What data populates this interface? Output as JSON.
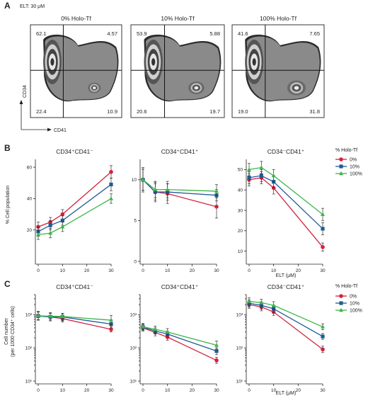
{
  "panels": {
    "A": {
      "letter": "A",
      "subtitle": "ELT: 30 μM",
      "y_marker": "CD34",
      "x_marker": "CD41",
      "plots": [
        {
          "title": "0% Holo-Tf",
          "q_ul": "62.1",
          "q_ur": "4.57",
          "q_ll": "22.4",
          "q_lr": "10.9"
        },
        {
          "title": "10% Holo-Tf",
          "q_ul": "53.9",
          "q_ur": "5.88",
          "q_ll": "20.6",
          "q_lr": "19.7"
        },
        {
          "title": "100% Holo-Tf",
          "q_ul": "41.6",
          "q_ur": "7.65",
          "q_ll": "19.0",
          "q_lr": "31.8"
        }
      ]
    },
    "B": {
      "letter": "B",
      "ylabel": "% Cell population",
      "xlabel": "ELT (μM)",
      "legend_title": "% Holo-Tf",
      "legend": [
        "0%",
        "10%",
        "100%"
      ]
    },
    "C": {
      "letter": "C",
      "ylabel_1": "Cell number",
      "ylabel_2": "(per 1000 CD34⁺ cells)",
      "xlabel": "ELT (μM)",
      "legend_title": "% Holo-Tf",
      "legend": [
        "0%",
        "10%",
        "100%"
      ]
    }
  },
  "colors": {
    "0%": "#d4213d",
    "10%": "#1f5b96",
    "100%": "#3db54a"
  },
  "chart_data": [
    {
      "type": "line",
      "title": "CD34⁺CD41⁻",
      "panel": "B",
      "yscale": "linear",
      "x": [
        0,
        5,
        10,
        30
      ],
      "xticks": [
        "0",
        "10",
        "20",
        "30"
      ],
      "xlim": [
        0,
        30
      ],
      "ylim": [
        0,
        65
      ],
      "yticks": [
        "20",
        "40",
        "60"
      ],
      "ytick_values": [
        20,
        40,
        60
      ],
      "series": [
        {
          "name": "0%",
          "values": [
            22,
            25,
            30,
            57
          ],
          "err": [
            3,
            3,
            3,
            4
          ]
        },
        {
          "name": "10%",
          "values": [
            19,
            23,
            26,
            49
          ],
          "err": [
            3,
            3,
            3,
            4
          ]
        },
        {
          "name": "100%",
          "values": [
            17,
            18,
            22,
            40
          ],
          "err": [
            3,
            3,
            3,
            3
          ]
        }
      ]
    },
    {
      "type": "line",
      "title": "CD34⁺CD41⁺",
      "panel": "B",
      "yscale": "linear",
      "x": [
        0,
        5,
        10,
        30
      ],
      "xticks": [
        "0",
        "10",
        "20",
        "30"
      ],
      "xlim": [
        0,
        30
      ],
      "ylim": [
        0,
        12.5
      ],
      "yticks": [
        "0",
        "5",
        "10"
      ],
      "ytick_values": [
        0,
        5,
        10
      ],
      "series": [
        {
          "name": "0%",
          "values": [
            10,
            8.5,
            8.3,
            6.7
          ],
          "err": [
            1.5,
            1.2,
            1.2,
            1.4
          ]
        },
        {
          "name": "10%",
          "values": [
            10,
            8.5,
            8.5,
            8.1
          ],
          "err": [
            1.3,
            1.0,
            1.0,
            0.7
          ]
        },
        {
          "name": "100%",
          "values": [
            10,
            8.8,
            8.8,
            8.6
          ],
          "err": [
            1.3,
            1.0,
            1.0,
            0.8
          ]
        }
      ]
    },
    {
      "type": "line",
      "title": "CD34⁻CD41⁺",
      "panel": "B",
      "yscale": "linear",
      "x": [
        0,
        5,
        10,
        30
      ],
      "xticks": [
        "0",
        "10",
        "20",
        "30"
      ],
      "xlim": [
        0,
        30
      ],
      "ylim": [
        5,
        55
      ],
      "yticks": [
        "10",
        "20",
        "30",
        "40",
        "50"
      ],
      "ytick_values": [
        10,
        20,
        30,
        40,
        50
      ],
      "series": [
        {
          "name": "0%",
          "values": [
            45,
            46,
            41,
            12
          ],
          "err": [
            3,
            3,
            3,
            2
          ]
        },
        {
          "name": "10%",
          "values": [
            46,
            47,
            44,
            21
          ],
          "err": [
            3,
            3,
            3,
            3
          ]
        },
        {
          "name": "100%",
          "values": [
            50,
            51,
            47,
            28
          ],
          "err": [
            3,
            3,
            3,
            3
          ]
        }
      ]
    },
    {
      "type": "line",
      "title": "CD34⁺CD41⁻",
      "panel": "C",
      "yscale": "log",
      "x": [
        0,
        5,
        10,
        30
      ],
      "xticks": [
        "0",
        "10",
        "20",
        "30"
      ],
      "xlim": [
        0,
        30
      ],
      "ylim": [
        10,
        4000
      ],
      "yticks": [
        "10¹",
        "10²",
        "10³"
      ],
      "ytick_values": [
        10,
        100,
        1000
      ],
      "series": [
        {
          "name": "0%",
          "values": [
            930,
            850,
            760,
            360
          ],
          "err_lo": [
            700,
            650,
            600,
            300
          ],
          "err_hi": [
            1250,
            1100,
            950,
            440
          ]
        },
        {
          "name": "10%",
          "values": [
            900,
            860,
            850,
            520
          ],
          "err_lo": [
            680,
            650,
            650,
            400
          ],
          "err_hi": [
            1200,
            1100,
            1050,
            700
          ]
        },
        {
          "name": "100%",
          "values": [
            920,
            900,
            880,
            680
          ],
          "err_lo": [
            700,
            700,
            680,
            500
          ],
          "err_hi": [
            1200,
            1150,
            1100,
            950
          ]
        }
      ]
    },
    {
      "type": "line",
      "title": "CD34⁺CD41⁺",
      "panel": "C",
      "yscale": "log",
      "x": [
        0,
        5,
        10,
        30
      ],
      "xticks": [
        "0",
        "10",
        "20",
        "30"
      ],
      "xlim": [
        0,
        30
      ],
      "ylim": [
        10,
        4000
      ],
      "yticks": [
        "10¹",
        "10²",
        "10³"
      ],
      "ytick_values": [
        10,
        100,
        1000
      ],
      "series": [
        {
          "name": "0%",
          "values": [
            400,
            290,
            210,
            42
          ],
          "err_lo": [
            320,
            230,
            170,
            34
          ],
          "err_hi": [
            500,
            360,
            270,
            52
          ]
        },
        {
          "name": "10%",
          "values": [
            420,
            320,
            260,
            80
          ],
          "err_lo": [
            340,
            260,
            210,
            62
          ],
          "err_hi": [
            520,
            400,
            320,
            100
          ]
        },
        {
          "name": "100%",
          "values": [
            430,
            360,
            300,
            120
          ],
          "err_lo": [
            350,
            290,
            240,
            90
          ],
          "err_hi": [
            540,
            450,
            380,
            160
          ]
        }
      ]
    },
    {
      "type": "line",
      "title": "CD34⁻CD41⁺",
      "panel": "C",
      "yscale": "log",
      "x": [
        0,
        5,
        10,
        30
      ],
      "xticks": [
        "0",
        "10",
        "20",
        "30"
      ],
      "xlim": [
        0,
        30
      ],
      "ylim": [
        10,
        4000
      ],
      "yticks": [
        "10¹",
        "10²",
        "10³"
      ],
      "ytick_values": [
        10,
        100,
        1000
      ],
      "series": [
        {
          "name": "0%",
          "values": [
            2000,
            1700,
            1200,
            90
          ],
          "err_lo": [
            1550,
            1300,
            950,
            72
          ],
          "err_hi": [
            2600,
            2200,
            1550,
            112
          ]
        },
        {
          "name": "10%",
          "values": [
            2200,
            1900,
            1500,
            220
          ],
          "err_lo": [
            1700,
            1450,
            1150,
            180
          ],
          "err_hi": [
            2800,
            2450,
            1900,
            270
          ]
        },
        {
          "name": "100%",
          "values": [
            2500,
            2300,
            1900,
            430
          ],
          "err_lo": [
            1900,
            1750,
            1450,
            350
          ],
          "err_hi": [
            3200,
            2900,
            2450,
            530
          ]
        }
      ]
    }
  ]
}
